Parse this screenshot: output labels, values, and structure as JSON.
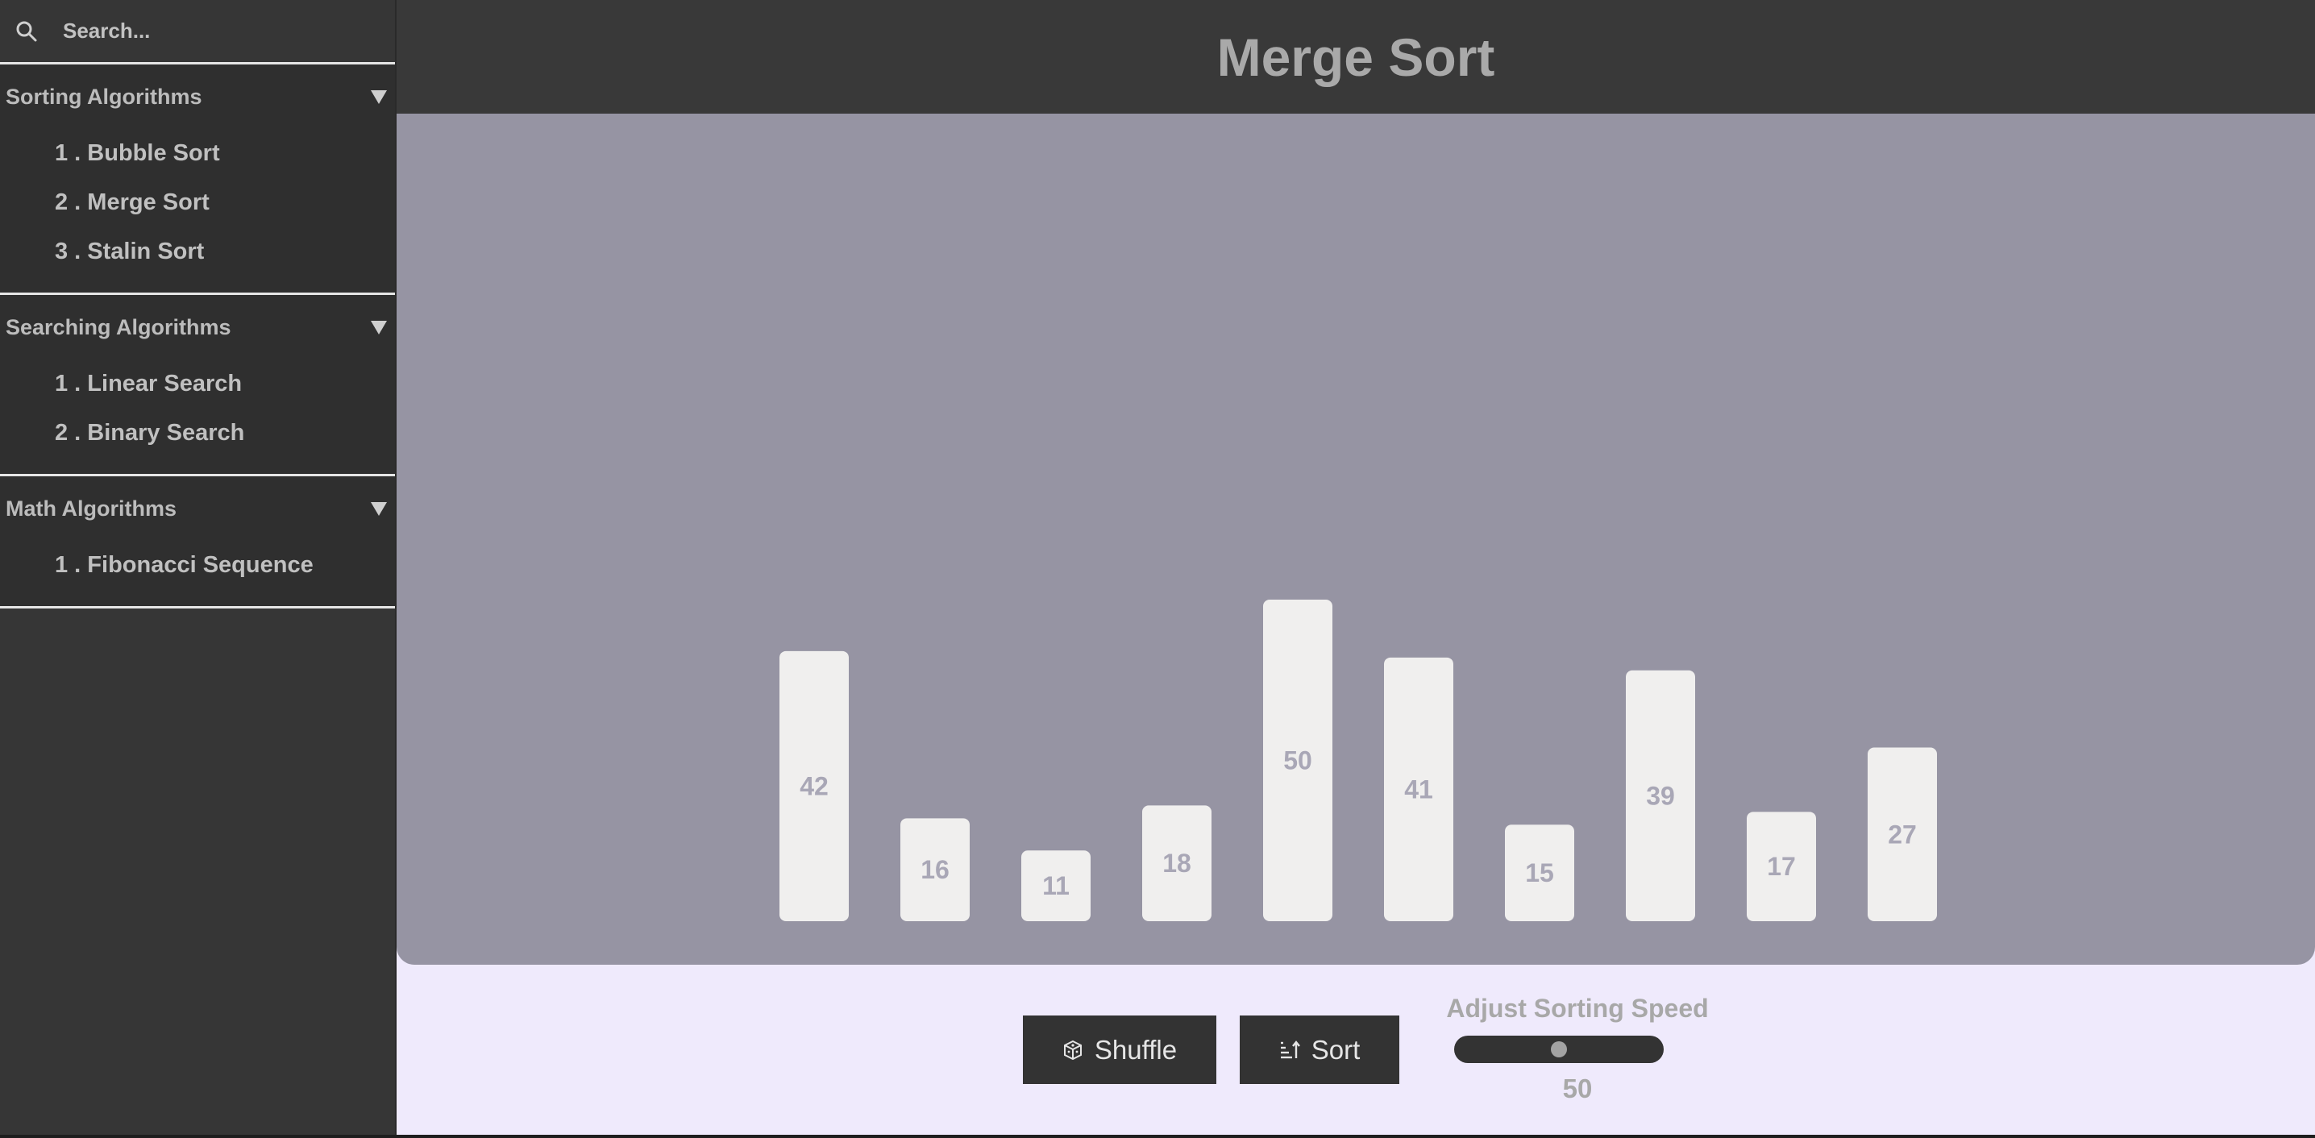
{
  "search": {
    "placeholder": "Search..."
  },
  "sidebar": {
    "groups": [
      {
        "title": "Sorting Algorithms",
        "items": [
          {
            "label": "1 . Bubble Sort"
          },
          {
            "label": "2 . Merge Sort"
          },
          {
            "label": "3 . Stalin Sort"
          }
        ]
      },
      {
        "title": "Searching Algorithms",
        "items": [
          {
            "label": "1 . Linear Search"
          },
          {
            "label": "2 . Binary Search"
          }
        ]
      },
      {
        "title": "Math Algorithms",
        "items": [
          {
            "label": "1 . Fibonacci Sequence"
          }
        ]
      }
    ]
  },
  "header": {
    "title": "Merge Sort"
  },
  "controls": {
    "shuffle_label": "Shuffle",
    "sort_label": "Sort",
    "speed_label": "Adjust Sorting Speed",
    "speed_value": "50",
    "speed_min": 0,
    "speed_max": 100
  },
  "colors": {
    "chart_bg": "#9694a3",
    "bar_fill": "#f0efee",
    "bar_text": "#a9a7b6"
  },
  "chart_data": {
    "type": "bar",
    "values": [
      42,
      16,
      11,
      18,
      50,
      41,
      15,
      39,
      17,
      27
    ]
  }
}
